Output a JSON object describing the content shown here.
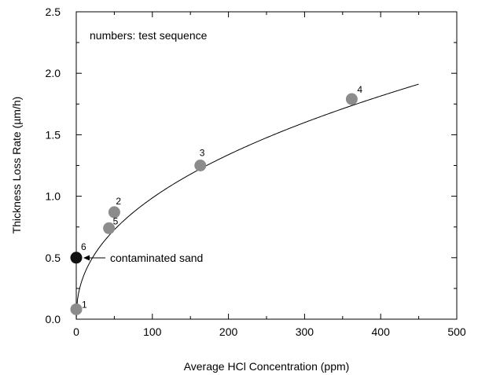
{
  "chart_data": {
    "type": "scatter",
    "title": "",
    "xlabel": "Average HCl Concentration (ppm)",
    "ylabel": "Thickness Loss Rate  (µm/h)",
    "xlim": [
      0,
      500
    ],
    "ylim": [
      0,
      2.5
    ],
    "x_ticks": [
      "0",
      "100",
      "200",
      "300",
      "400",
      "500"
    ],
    "y_ticks": [
      "0.0",
      "0.5",
      "1.0",
      "1.5",
      "2.0",
      "2.5"
    ],
    "grid": false,
    "legend": "none",
    "series": [
      {
        "color": "#8c8c8c",
        "points": [
          {
            "x": 0,
            "y": 0.08,
            "label": "1"
          },
          {
            "x": 50,
            "y": 0.87,
            "label": "2"
          },
          {
            "x": 163,
            "y": 1.25,
            "label": "3"
          },
          {
            "x": 362,
            "y": 1.79,
            "label": "4"
          },
          {
            "x": 43,
            "y": 0.74,
            "label": "5"
          }
        ]
      },
      {
        "color": "#111111",
        "points": [
          {
            "x": 0,
            "y": 0.5,
            "label": "6"
          }
        ]
      }
    ],
    "fit_curve": {
      "type": "power",
      "formula": "y = 0.13 * x^0.44",
      "a": 0.13,
      "b": 0.44,
      "x_range": [
        0,
        450
      ],
      "color": "#000000"
    },
    "annotations": [
      {
        "text": "numbers: test sequence"
      },
      {
        "text": "contaminated sand",
        "arrow_to": {
          "x": 0,
          "y": 0.5
        }
      }
    ]
  }
}
